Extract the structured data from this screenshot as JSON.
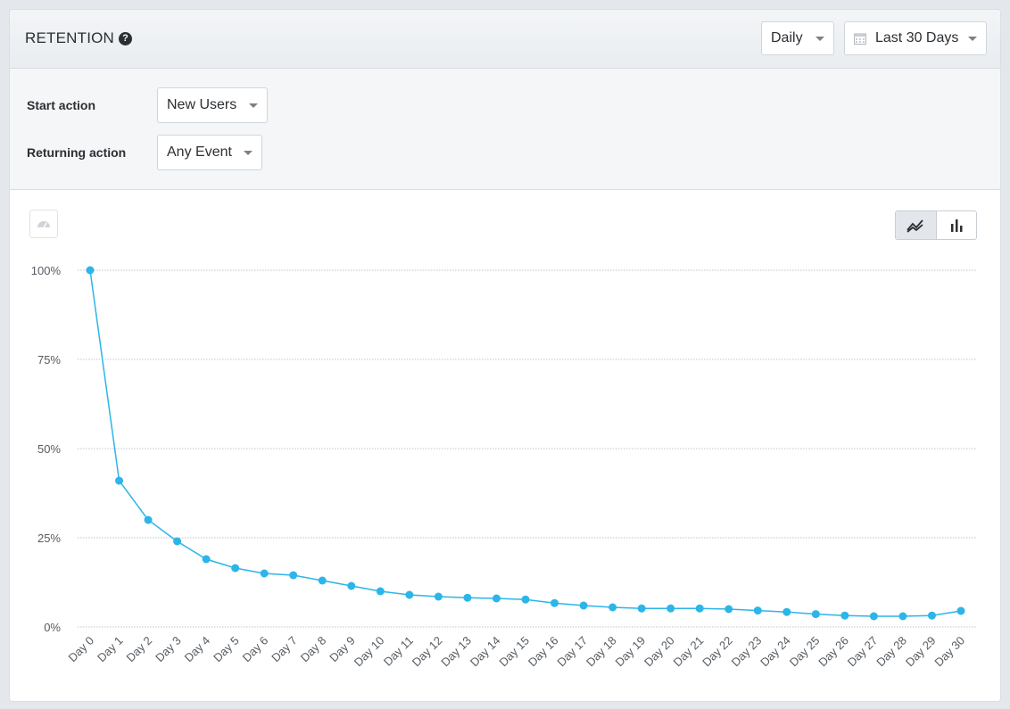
{
  "header": {
    "title": "RETENTION",
    "interval": "Daily",
    "date_range": "Last 30 Days"
  },
  "filters": {
    "start_label": "Start action",
    "start_value": "New Users",
    "returning_label": "Returning action",
    "returning_value": "Any Event"
  },
  "icons": {
    "help": "help-icon",
    "calendar": "calendar-icon",
    "dashboard": "dashboard-icon",
    "line_view": "line-chart-icon",
    "bar_view": "bar-chart-icon"
  },
  "colors": {
    "series": "#2cb5e8",
    "grid": "#bfc4c9"
  },
  "chart_data": {
    "type": "line",
    "categories": [
      "Day 0",
      "Day 1",
      "Day 2",
      "Day 3",
      "Day 4",
      "Day 5",
      "Day 6",
      "Day 7",
      "Day 8",
      "Day 9",
      "Day 10",
      "Day 11",
      "Day 12",
      "Day 13",
      "Day 14",
      "Day 15",
      "Day 16",
      "Day 17",
      "Day 18",
      "Day 19",
      "Day 20",
      "Day 21",
      "Day 22",
      "Day 23",
      "Day 24",
      "Day 25",
      "Day 26",
      "Day 27",
      "Day 28",
      "Day 29",
      "Day 30"
    ],
    "values": [
      100,
      41,
      30,
      24,
      19,
      16.5,
      15,
      14.5,
      13,
      11.5,
      10,
      9,
      8.5,
      8.2,
      8,
      7.7,
      6.7,
      6,
      5.5,
      5.2,
      5.2,
      5.2,
      5,
      4.6,
      4.2,
      3.6,
      3.2,
      3,
      3,
      3.2,
      4.5
    ],
    "ylim": [
      0,
      100
    ],
    "yticks": [
      0,
      25,
      50,
      75,
      100
    ],
    "ytick_labels": [
      "0%",
      "25%",
      "50%",
      "75%",
      "100%"
    ],
    "grid": true
  }
}
